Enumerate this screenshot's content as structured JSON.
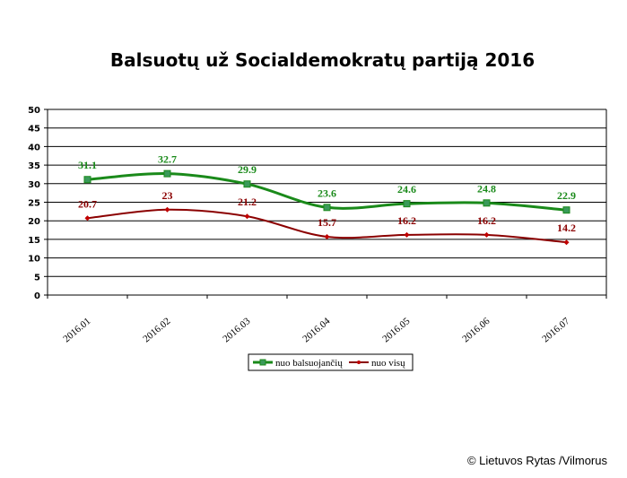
{
  "chart_data": {
    "type": "line",
    "title": "Balsuotų už Socialdemokratų partiją 2016",
    "categories": [
      "2016.01",
      "2016.02",
      "2016.03",
      "2016.04",
      "2016.05",
      "2016.06",
      "2016.07"
    ],
    "ylim": [
      0,
      50
    ],
    "yticks": [
      0,
      5,
      10,
      15,
      20,
      25,
      30,
      35,
      40,
      45,
      50
    ],
    "grid": true,
    "legend_position": "bottom",
    "series": [
      {
        "name": "nuo balsuojančių",
        "color": "#1a8a1a",
        "marker": "square",
        "values": [
          31.1,
          32.7,
          29.9,
          23.6,
          24.6,
          24.8,
          22.9
        ],
        "labels": [
          "31.1",
          "32.7",
          "29.9",
          "23.6",
          "24.6",
          "24.8",
          "22.9"
        ]
      },
      {
        "name": "nuo visų",
        "color": "#8b0000",
        "marker": "diamond",
        "values": [
          20.7,
          23,
          21.2,
          15.7,
          16.2,
          16.2,
          14.2
        ],
        "labels": [
          "20.7",
          "23",
          "21.2",
          "15.7",
          "16.2",
          "16.2",
          "14.2"
        ]
      }
    ]
  },
  "credit": "© Lietuvos Rytas /Vilmorus"
}
